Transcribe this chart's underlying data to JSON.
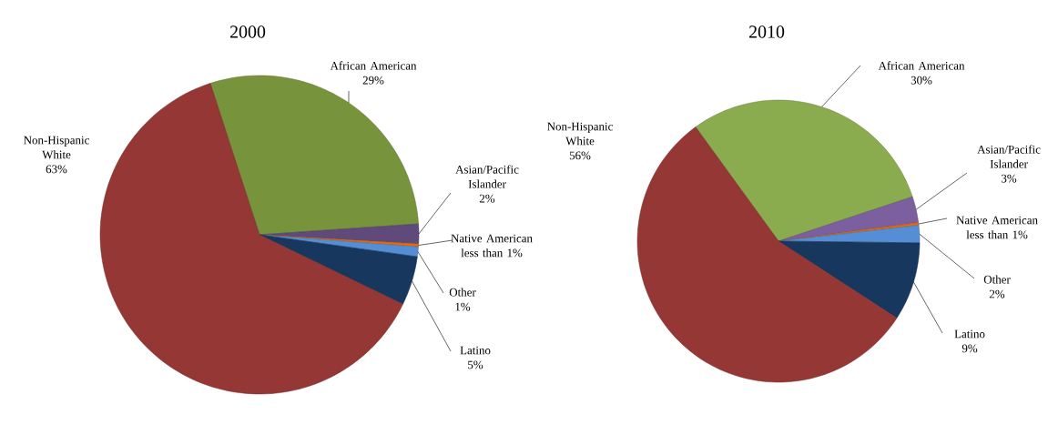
{
  "chart_data": [
    {
      "type": "pie",
      "title": "2000",
      "categories": [
        "African American",
        "Asian/Pacific Islander",
        "Native American",
        "Other",
        "Latino",
        "Non-Hispanic White"
      ],
      "values": [
        29,
        2,
        0.3,
        1,
        5,
        63
      ],
      "value_labels": [
        "29%",
        "2%",
        "less than 1%",
        "1%",
        "5%",
        "63%"
      ],
      "colors": [
        "#77933c",
        "#604a7b",
        "#e46c0a",
        "#558ed5",
        "#17375e",
        "#953735"
      ]
    },
    {
      "type": "pie",
      "title": "2010",
      "categories": [
        "African American",
        "Asian/Pacific Islander",
        "Native American",
        "Other",
        "Latino",
        "Non-Hispanic White"
      ],
      "values": [
        30,
        3,
        0.3,
        2,
        9,
        56
      ],
      "value_labels": [
        "30%",
        "3%",
        "less than 1%",
        "2%",
        "9%",
        "56%"
      ],
      "colors": [
        "#8aab4e",
        "#7c5f9e",
        "#e46c0a",
        "#558ed5",
        "#17375e",
        "#953735"
      ]
    }
  ]
}
